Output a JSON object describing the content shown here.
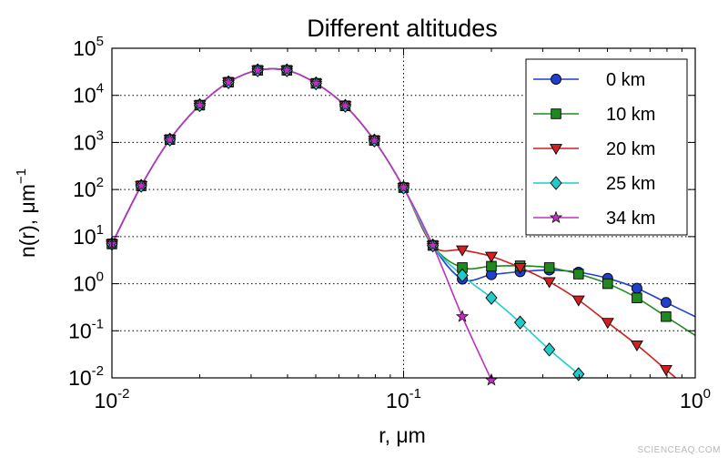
{
  "chart_data": {
    "type": "line",
    "title": "Different altitudes",
    "xlabel": "r, μm",
    "ylabel": "n(r), μm",
    "ylabel_exponent": "−1",
    "x_scale": "log",
    "y_scale": "log",
    "xlim": [
      0.01,
      1.0
    ],
    "ylim": [
      0.01,
      100000
    ],
    "x_ticks": [
      {
        "value": 0.01,
        "base": "10",
        "exp": "-2"
      },
      {
        "value": 0.1,
        "base": "10",
        "exp": "-1"
      },
      {
        "value": 1.0,
        "base": "10",
        "exp": "0"
      }
    ],
    "y_ticks": [
      {
        "value": 0.01,
        "base": "10",
        "exp": "-2"
      },
      {
        "value": 0.1,
        "base": "10",
        "exp": "-1"
      },
      {
        "value": 1,
        "base": "10",
        "exp": "0"
      },
      {
        "value": 10,
        "base": "10",
        "exp": "1"
      },
      {
        "value": 100,
        "base": "10",
        "exp": "2"
      },
      {
        "value": 1000,
        "base": "10",
        "exp": "3"
      },
      {
        "value": 10000,
        "base": "10",
        "exp": "4"
      },
      {
        "value": 100000,
        "base": "10",
        "exp": "5"
      }
    ],
    "grid": "dotted",
    "legend_position": "top-right",
    "fine_mode": {
      "x": [
        0.01,
        0.0126,
        0.0158,
        0.02,
        0.0251,
        0.0316,
        0.0398,
        0.0501,
        0.0631,
        0.0794,
        0.1,
        0.126
      ],
      "y": [
        7,
        120,
        1150,
        6200,
        19000,
        34000,
        34000,
        18000,
        6000,
        1100,
        110,
        6.5
      ]
    },
    "series": [
      {
        "name": "0 km",
        "color": "#1f3fcf",
        "marker": "circle",
        "x": [
          0.159,
          0.2,
          0.251,
          0.316,
          0.398,
          0.501,
          0.631,
          0.794
        ],
        "y": [
          1.25,
          1.55,
          1.8,
          1.95,
          1.75,
          1.3,
          0.8,
          0.4
        ]
      },
      {
        "name": "10 km",
        "color": "#1e8a1e",
        "marker": "square",
        "x": [
          0.159,
          0.2,
          0.251,
          0.316,
          0.398,
          0.501,
          0.631,
          0.794
        ],
        "y": [
          2.2,
          2.35,
          2.4,
          2.2,
          1.6,
          1.0,
          0.5,
          0.2
        ]
      },
      {
        "name": "20 km",
        "color": "#d02020",
        "marker": "triangle-down",
        "x": [
          0.126,
          0.159,
          0.2,
          0.251,
          0.316,
          0.398,
          0.501,
          0.631,
          0.794
        ],
        "y": [
          12,
          5.2,
          3.8,
          2.2,
          1.1,
          0.45,
          0.15,
          0.05,
          0.015
        ]
      },
      {
        "name": "25 km",
        "color": "#1fcccc",
        "marker": "diamond",
        "x": [
          0.126,
          0.159,
          0.2,
          0.251,
          0.316,
          0.398
        ],
        "y": [
          9,
          1.5,
          0.5,
          0.15,
          0.04,
          0.012
        ]
      },
      {
        "name": "34 km",
        "color": "#c030c0",
        "marker": "star",
        "x": [
          0.126,
          0.159,
          0.2
        ],
        "y": [
          7,
          0.2,
          0.009
        ]
      }
    ]
  },
  "watermark": "SCIENCEAQ.COM"
}
